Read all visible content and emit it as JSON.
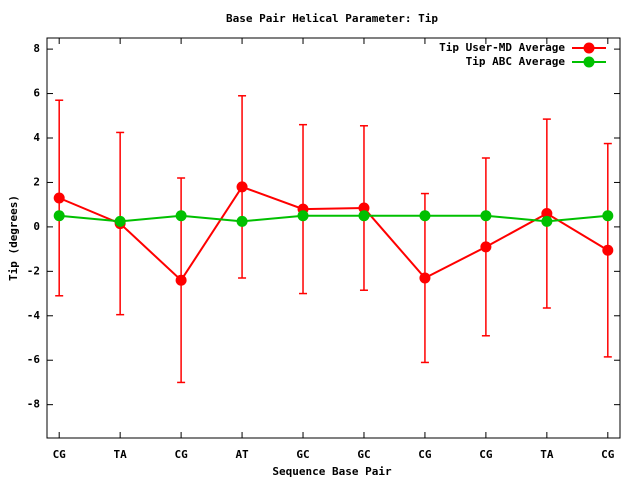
{
  "chart_data": {
    "type": "line",
    "title": "Base Pair Helical Parameter: Tip",
    "x_label": "Sequence Base Pair",
    "y_label": "Tip (degrees)",
    "categories": [
      "CG",
      "TA",
      "CG",
      "AT",
      "GC",
      "GC",
      "CG",
      "CG",
      "TA",
      "CG"
    ],
    "series": [
      {
        "name": "Tip User-MD Average",
        "color": "#ff0000",
        "values": [
          1.3,
          0.15,
          -2.4,
          1.8,
          0.8,
          0.85,
          -2.3,
          -0.9,
          0.6,
          -1.05
        ],
        "errors": [
          4.4,
          4.1,
          4.6,
          4.1,
          3.8,
          3.7,
          3.8,
          4.0,
          4.25,
          4.8
        ]
      },
      {
        "name": "Tip ABC Average",
        "color": "#00c000",
        "values": [
          0.5,
          0.25,
          0.5,
          0.25,
          0.5,
          0.5,
          0.5,
          0.5,
          0.25,
          0.5
        ]
      }
    ],
    "ylim": [
      -9.5,
      8.5
    ],
    "yticks": [
      -8,
      -6,
      -4,
      -2,
      0,
      2,
      4,
      6,
      8
    ],
    "legend": "top-right",
    "grid": false
  }
}
